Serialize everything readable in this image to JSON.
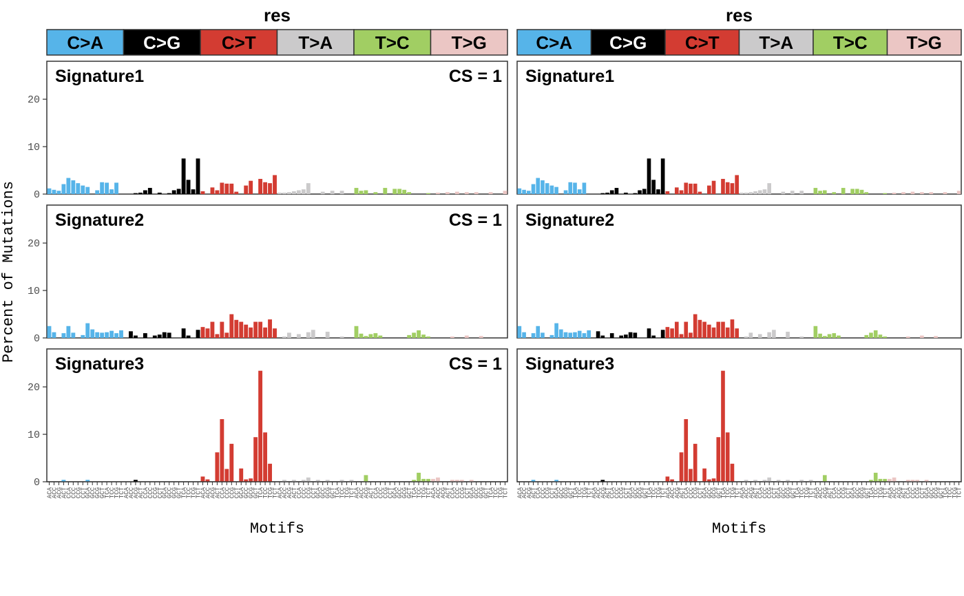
{
  "chart_data": {
    "type": "bar",
    "ylabel": "Percent of Mutations",
    "xlabel": "Motifs",
    "ylim": [
      0,
      28
    ],
    "yticks": [
      0,
      10,
      20
    ],
    "grid": false,
    "columns": [
      {
        "title": "res",
        "show_cs": true
      },
      {
        "title": "res",
        "show_cs": false
      }
    ],
    "mutation_types": [
      {
        "label": "C>A",
        "color": "#56B4E9",
        "text_color": "#000000"
      },
      {
        "label": "C>G",
        "color": "#000000",
        "text_color": "#ffffff"
      },
      {
        "label": "C>T",
        "color": "#D33C32",
        "text_color": "#000000"
      },
      {
        "label": "T>A",
        "color": "#CBCACB",
        "text_color": "#000000"
      },
      {
        "label": "T>C",
        "color": "#A1CE63",
        "text_color": "#000000"
      },
      {
        "label": "T>G",
        "color": "#EBC6C4",
        "text_color": "#000000"
      }
    ],
    "motif_labels": [
      "ACA",
      "ACC",
      "ACG",
      "ACT",
      "CCA",
      "CCC",
      "CCG",
      "CCT",
      "GCA",
      "GCC",
      "GCG",
      "GCT",
      "TCA",
      "TCC",
      "TCG",
      "TCT"
    ],
    "cs_text": "CS = 1",
    "signatures": [
      {
        "name": "Signature1",
        "values": [
          1.2,
          0.9,
          0.7,
          2.1,
          3.4,
          2.9,
          2.3,
          1.8,
          1.5,
          0,
          0.8,
          2.5,
          2.4,
          1.0,
          2.4,
          0,
          0,
          0,
          0.2,
          0.3,
          0.8,
          1.3,
          0,
          0.3,
          0,
          0.2,
          0.8,
          1.1,
          7.5,
          3.0,
          1.0,
          7.5,
          0.6,
          0,
          1.4,
          0.8,
          2.4,
          2.2,
          2.2,
          0.5,
          0,
          1.8,
          2.8,
          0,
          3.2,
          2.5,
          2.3,
          4.0,
          0.3,
          0.3,
          0.4,
          0.6,
          0.8,
          1.0,
          2.3,
          0,
          0,
          0.5,
          0,
          0.7,
          0,
          0.7,
          0,
          0,
          1.3,
          0.7,
          0.8,
          0,
          0.4,
          0,
          1.3,
          0,
          1.1,
          1.1,
          0.9,
          0.4,
          0,
          0,
          0,
          0.2,
          0,
          0.3,
          0,
          0.4,
          0,
          0.5,
          0,
          0.4,
          0,
          0.4,
          0,
          0,
          0.4,
          0,
          0,
          0.7
        ]
      },
      {
        "name": "Signature2",
        "values": [
          2.5,
          1.2,
          0,
          1.0,
          2.5,
          1.1,
          0,
          0.6,
          3.1,
          1.8,
          1.2,
          1.1,
          1.2,
          1.5,
          1.0,
          1.6,
          0,
          1.4,
          0.5,
          0,
          1.0,
          0,
          0.5,
          0.7,
          1.2,
          1.1,
          0,
          0,
          2.0,
          0.5,
          0,
          1.7,
          2.3,
          2.0,
          3.4,
          0.8,
          3.4,
          1.1,
          5.0,
          3.8,
          3.4,
          2.8,
          2.2,
          3.4,
          3.4,
          2.2,
          3.9,
          2.0,
          0,
          0.3,
          1.1,
          0,
          0.8,
          0,
          1.2,
          1.7,
          0,
          0,
          1.3,
          0,
          0,
          0.3,
          0,
          0,
          2.5,
          0.9,
          0.4,
          0.8,
          1.0,
          0.5,
          0,
          0,
          0,
          0,
          0,
          0.6,
          1.1,
          1.6,
          0.7,
          0.3,
          0,
          0,
          0,
          0,
          0.3,
          0,
          0,
          0.5,
          0,
          0,
          0.4,
          0,
          0,
          0,
          0,
          0
        ]
      },
      {
        "name": "Signature3",
        "values": [
          0,
          0,
          0,
          0.4,
          0,
          0,
          0,
          0,
          0.4,
          0,
          0,
          0,
          0,
          0,
          0,
          0,
          0,
          0,
          0.4,
          0,
          0,
          0,
          0,
          0,
          0,
          0,
          0,
          0,
          0,
          0,
          0,
          0,
          1.1,
          0.5,
          0,
          6.2,
          13.2,
          2.7,
          8.0,
          0,
          2.8,
          0.5,
          0.7,
          9.4,
          23.4,
          10.4,
          3.8,
          0,
          0,
          0.4,
          0,
          0.4,
          0,
          0.4,
          0.9,
          0,
          0.4,
          0,
          0.4,
          0,
          0,
          0.4,
          0,
          0.4,
          0,
          0,
          1.4,
          0,
          0,
          0,
          0,
          0,
          0,
          0,
          0,
          0,
          0.4,
          1.9,
          0.6,
          0.6,
          0.6,
          0.9,
          0,
          0,
          0.4,
          0.4,
          0.4,
          0,
          0.4,
          0,
          0,
          0,
          0,
          0,
          0,
          0
        ]
      }
    ]
  }
}
